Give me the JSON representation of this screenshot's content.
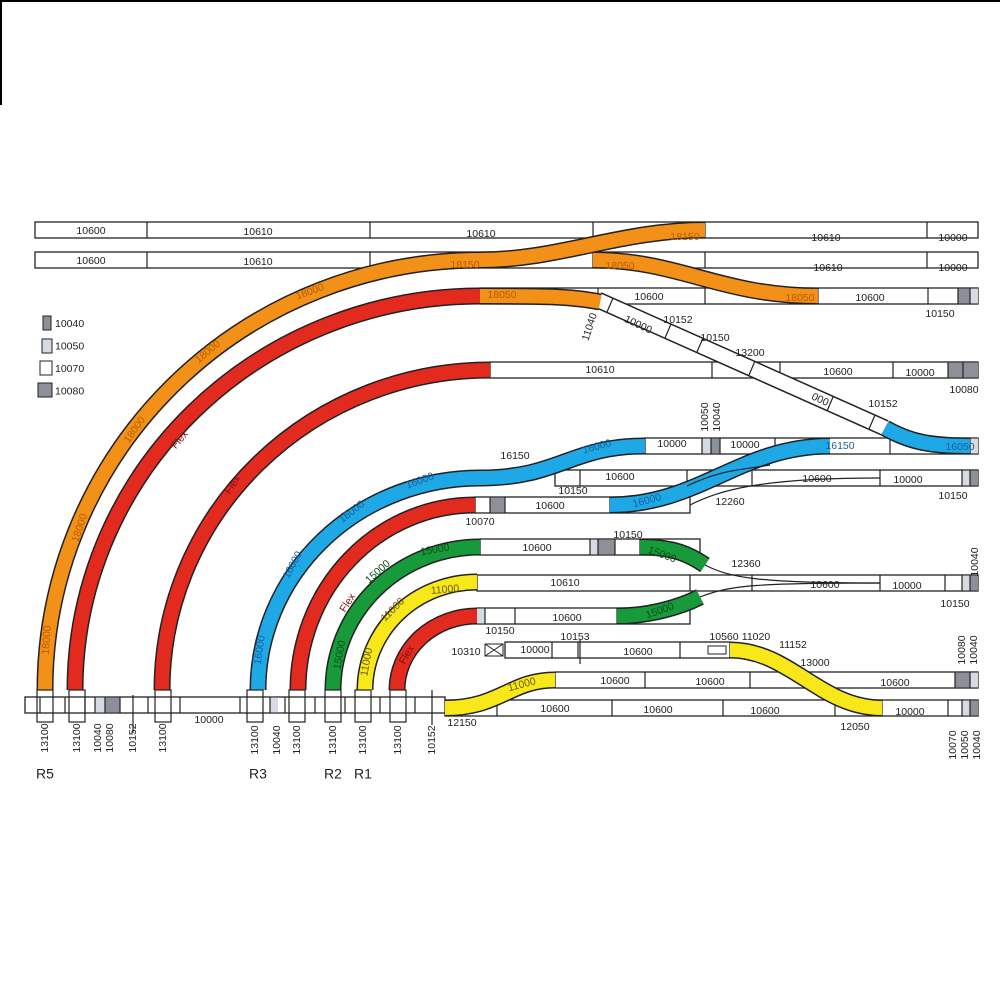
{
  "colors": {
    "orange": "#f39018",
    "red": "#e22a1f",
    "blue": "#1ea8e6",
    "green": "#169a3a",
    "yellow": "#f8e81a",
    "light_grey": "#d6dae2",
    "dark_grey": "#8d9098"
  },
  "legend": [
    {
      "code": "10040",
      "swatch": "narrow-grey"
    },
    {
      "code": "10050",
      "swatch": "light-grey"
    },
    {
      "code": "10070",
      "swatch": "white"
    },
    {
      "code": "10080",
      "swatch": "dark-grey"
    }
  ],
  "labels": [
    "10600",
    "10610",
    "10610",
    "18150",
    "10610",
    "10000",
    "10600",
    "10610",
    "18150",
    "18050",
    "10610",
    "10000",
    "18050",
    "10600",
    "18050",
    "10600",
    "10150",
    "11040",
    "10000",
    "10152",
    "10150",
    "13200",
    "000",
    "10152",
    "10610",
    "10600",
    "10000",
    "10080",
    "10050",
    "10040",
    "10000",
    "10000",
    "16150",
    "16050",
    "16000",
    "16150",
    "10150",
    "10600",
    "10600",
    "10000",
    "10150",
    "12260",
    "10070",
    "10600",
    "16000",
    "16000",
    "16000",
    "16000",
    "16000",
    "10600",
    "10150",
    "15000",
    "12360",
    "10610",
    "10600",
    "10000",
    "10150",
    "10040",
    "10150",
    "10600",
    "15000",
    "15000",
    "15000",
    "15000",
    "11000",
    "11000",
    "11000",
    "Flex",
    "10310",
    "10000",
    "10153",
    "10600",
    "10560",
    "11020",
    "11152",
    "13000",
    "10080",
    "10040",
    "11000",
    "10600",
    "10600",
    "10600",
    "12150",
    "10600",
    "10600",
    "10600",
    "12050",
    "10000",
    "10070",
    "10050",
    "10040",
    "13100",
    "13100",
    "10040",
    "10080",
    "10152",
    "13100",
    "10000",
    "13100",
    "10040",
    "13100",
    "13100",
    "13100",
    "13100",
    "10152",
    "R5",
    "R3",
    "R2",
    "R1",
    "18000",
    "18000",
    "18000",
    "18000",
    "18000",
    "Flex",
    "Flex",
    "Flex"
  ]
}
